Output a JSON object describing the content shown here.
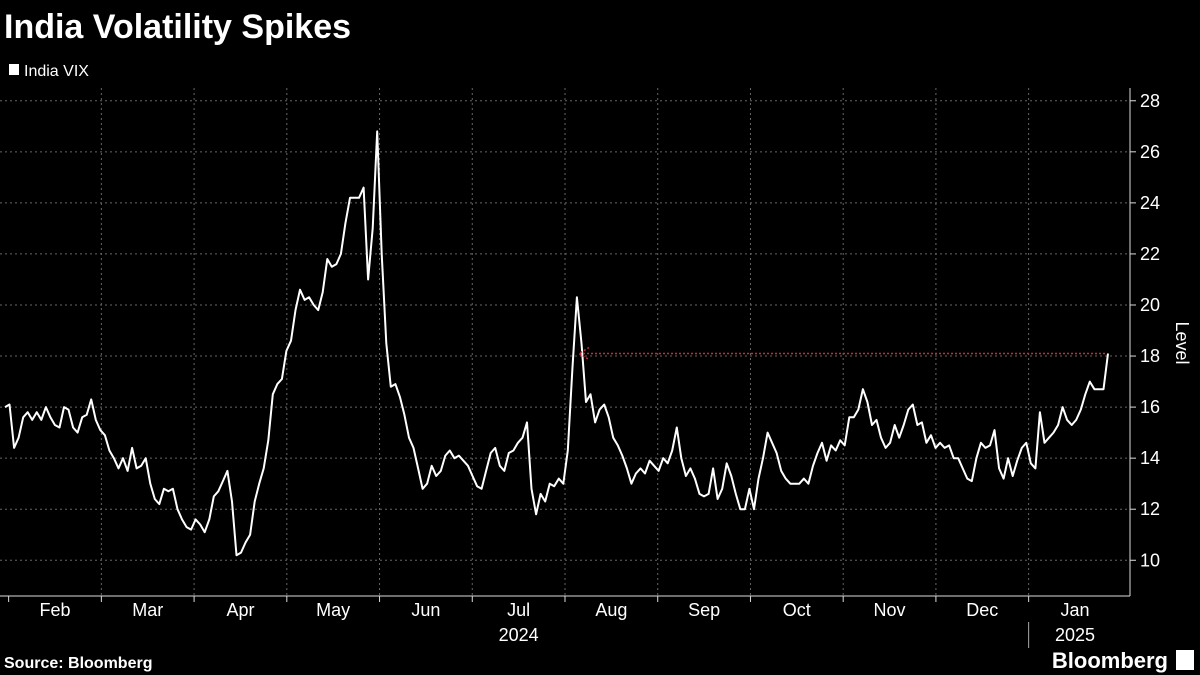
{
  "chart_data": {
    "type": "line",
    "title": "India Volatility Spikes",
    "source": "Source: Bloomberg",
    "brand": "Bloomberg",
    "y_axis_label": "Level",
    "months": [
      "Feb",
      "Mar",
      "Apr",
      "May",
      "Jun",
      "Jul",
      "Aug",
      "Sep",
      "Oct",
      "Nov",
      "Dec",
      "Jan"
    ],
    "years": [
      "2024",
      "2025"
    ],
    "ylim": [
      8.6,
      28.5
    ],
    "yticks": [
      10,
      12,
      14,
      16,
      18,
      20,
      22,
      24,
      26,
      28
    ],
    "grid": true,
    "series": [
      {
        "name": "India VIX",
        "color": "#ffffff",
        "values": [
          16.0,
          16.1,
          14.4,
          14.8,
          15.6,
          15.8,
          15.5,
          15.8,
          15.5,
          16.0,
          15.6,
          15.3,
          15.2,
          16.0,
          15.9,
          15.2,
          15.0,
          15.6,
          15.7,
          16.3,
          15.5,
          15.1,
          14.9,
          14.3,
          14.0,
          13.6,
          14.0,
          13.5,
          14.4,
          13.6,
          13.7,
          14.0,
          13.0,
          12.4,
          12.2,
          12.8,
          12.7,
          12.8,
          12.0,
          11.6,
          11.3,
          11.2,
          11.6,
          11.4,
          11.1,
          11.6,
          12.5,
          12.7,
          13.1,
          13.5,
          12.3,
          10.2,
          10.3,
          10.7,
          11.0,
          12.3,
          13.0,
          13.6,
          14.7,
          16.5,
          16.9,
          17.1,
          18.2,
          18.6,
          19.8,
          20.6,
          20.2,
          20.3,
          20.0,
          19.8,
          20.5,
          21.8,
          21.5,
          21.6,
          22.0,
          23.2,
          24.2,
          24.2,
          24.2,
          24.6,
          21.0,
          23.0,
          26.8,
          22.0,
          18.5,
          16.8,
          16.9,
          16.4,
          15.7,
          14.8,
          14.4,
          13.6,
          12.8,
          13.0,
          13.7,
          13.3,
          13.5,
          14.1,
          14.3,
          14.0,
          14.1,
          13.9,
          13.7,
          13.3,
          12.9,
          12.8,
          13.5,
          14.2,
          14.4,
          13.7,
          13.5,
          14.2,
          14.3,
          14.6,
          14.8,
          15.4,
          12.8,
          11.8,
          12.6,
          12.3,
          13.0,
          12.9,
          13.2,
          13.0,
          14.3,
          17.5,
          20.3,
          18.5,
          16.2,
          16.5,
          15.4,
          15.9,
          16.1,
          15.6,
          14.8,
          14.5,
          14.1,
          13.6,
          13.0,
          13.4,
          13.6,
          13.4,
          13.9,
          13.7,
          13.5,
          14.0,
          13.8,
          14.3,
          15.2,
          14.0,
          13.3,
          13.6,
          13.2,
          12.6,
          12.5,
          12.6,
          13.6,
          12.4,
          12.8,
          13.8,
          13.3,
          12.6,
          12.0,
          12.0,
          12.8,
          12.0,
          13.2,
          14.0,
          15.0,
          14.6,
          14.2,
          13.5,
          13.2,
          13.0,
          13.0,
          13.0,
          13.2,
          13.0,
          13.7,
          14.2,
          14.6,
          13.9,
          14.5,
          14.3,
          14.7,
          14.5,
          15.6,
          15.6,
          15.9,
          16.7,
          16.2,
          15.3,
          15.5,
          14.8,
          14.4,
          14.6,
          15.3,
          14.8,
          15.3,
          15.9,
          16.1,
          15.3,
          15.4,
          14.6,
          14.9,
          14.4,
          14.6,
          14.4,
          14.5,
          14.0,
          14.0,
          13.6,
          13.2,
          13.1,
          14.0,
          14.6,
          14.4,
          14.5,
          15.1,
          13.6,
          13.2,
          14.0,
          13.3,
          13.9,
          14.4,
          14.6,
          13.8,
          13.6,
          15.8,
          14.6,
          14.8,
          15.0,
          15.3,
          16.0,
          15.5,
          15.3,
          15.5,
          15.9,
          16.5,
          17.0,
          16.7,
          16.7,
          16.7,
          18.1
        ]
      }
    ]
  }
}
